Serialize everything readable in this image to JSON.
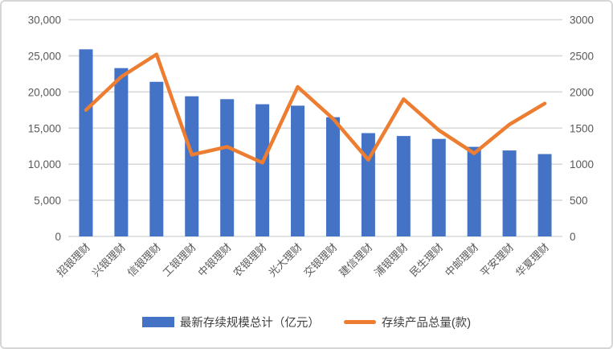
{
  "chart_data": {
    "type": "bar",
    "subtype": "combo-bar-line-dual-axis",
    "title": "",
    "xlabel": "",
    "ylabel": "",
    "grid": true,
    "legend_position": "bottom",
    "categories": [
      "招银理财",
      "兴银理财",
      "信银理财",
      "工银理财",
      "中银理财",
      "农银理财",
      "光大理财",
      "交银理财",
      "建信理财",
      "浦银理财",
      "民生理财",
      "中邮理财",
      "平安理财",
      "华夏理财"
    ],
    "series": [
      {
        "name": "最新存续规模总计（亿元）",
        "type": "bar",
        "axis": "left",
        "color": "#4472C4",
        "values": [
          25900,
          23300,
          21400,
          19400,
          19000,
          18300,
          18100,
          16500,
          14300,
          13900,
          13500,
          12400,
          11900,
          11400
        ]
      },
      {
        "name": "存续产品总量(款)",
        "type": "line",
        "axis": "right",
        "color": "#ED7D31",
        "values": [
          1750,
          2210,
          2520,
          1130,
          1240,
          1020,
          2070,
          1630,
          1060,
          1900,
          1470,
          1150,
          1550,
          1840
        ]
      }
    ],
    "left_axis": {
      "min": 0,
      "max": 30000,
      "step": 5000,
      "tick_labels": [
        "0",
        "5,000",
        "10,000",
        "15,000",
        "20,000",
        "25,000",
        "30,000"
      ]
    },
    "right_axis": {
      "min": 0,
      "max": 3000,
      "step": 500,
      "tick_labels": [
        "0",
        "500",
        "1000",
        "1500",
        "2000",
        "2500",
        "3000"
      ]
    }
  },
  "legend": {
    "bar_label": "最新存续规模总计（亿元）",
    "line_label": "存续产品总量(款)"
  },
  "colors": {
    "bar": "#4472C4",
    "line": "#ED7D31",
    "grid": "#D9D9D9",
    "text": "#595959",
    "background": "#FFFFFF",
    "border": "#D6D6D6"
  }
}
